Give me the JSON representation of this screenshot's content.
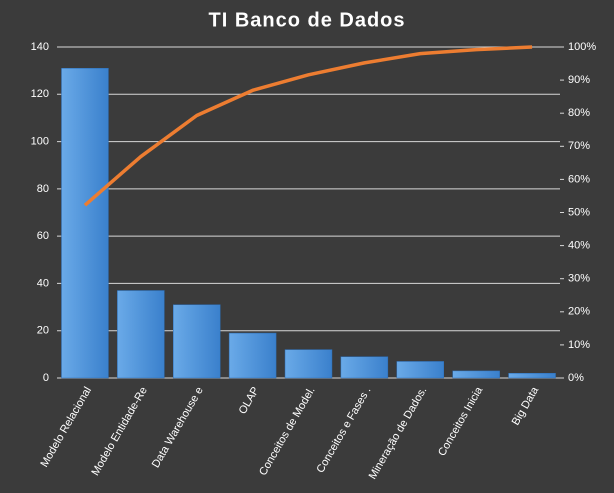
{
  "chart_data": {
    "type": "pareto",
    "title": "TI Banco de Dados",
    "categories": [
      "Modelo Relacional",
      "Modelo Entidade-Re",
      "Data Warehouse e",
      "OLAP",
      "Conceitos de Model.",
      "Conceitos e Fases .",
      "Mineração de Dados.",
      "Conceitos Inicia",
      "Big Data"
    ],
    "series": [
      {
        "type": "bar",
        "color": "#4a90d9",
        "values": [
          131,
          37,
          31,
          19,
          12,
          9,
          7,
          3,
          2
        ]
      },
      {
        "type": "line",
        "axis": "y2",
        "color": "#ed7d31",
        "values": [
          52.2,
          66.9,
          79.3,
          86.9,
          91.6,
          95.2,
          98.0,
          99.2,
          100
        ]
      }
    ],
    "ylim": [
      0,
      140
    ],
    "yticks": [
      0,
      20,
      40,
      60,
      80,
      100,
      120,
      140
    ],
    "y2lim": [
      0,
      100
    ],
    "y2ticks": [
      {
        "value": 0,
        "label": "0%"
      },
      {
        "value": 10,
        "label": "10%"
      },
      {
        "value": 20,
        "label": "20%"
      },
      {
        "value": 30,
        "label": "30%"
      },
      {
        "value": 40,
        "label": "40%"
      },
      {
        "value": 50,
        "label": "50%"
      },
      {
        "value": 60,
        "label": "60%"
      },
      {
        "value": 70,
        "label": "70%"
      },
      {
        "value": 80,
        "label": "80%"
      },
      {
        "value": 90,
        "label": "90%"
      },
      {
        "value": 100,
        "label": "100%"
      }
    ],
    "grid": true
  }
}
